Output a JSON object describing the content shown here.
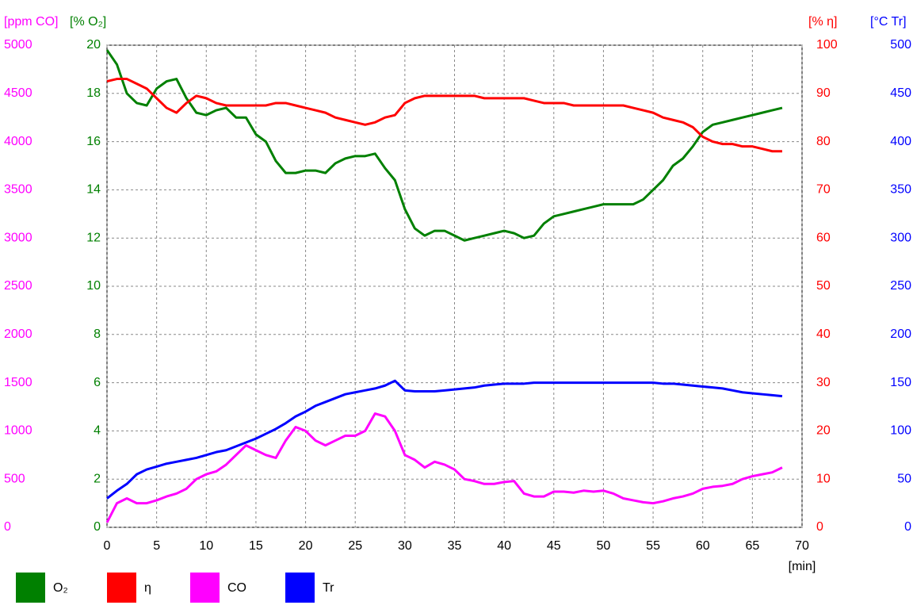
{
  "chart_data": {
    "type": "line",
    "x_label": "[min]",
    "xlim": [
      0,
      70
    ],
    "xticks": [
      0,
      5,
      10,
      15,
      20,
      25,
      30,
      35,
      40,
      45,
      50,
      55,
      60,
      65,
      70
    ],
    "grid": true,
    "axes": [
      {
        "title": "[ppm CO]",
        "color": "#ff00ff",
        "side": "left-outer",
        "lim": [
          0,
          5000
        ],
        "ticks": [
          0,
          500,
          1000,
          1500,
          2000,
          2500,
          3000,
          3500,
          4000,
          4500,
          5000
        ]
      },
      {
        "title": "[% O₂]",
        "color": "#008000",
        "side": "left-inner",
        "lim": [
          0,
          20
        ],
        "ticks": [
          0,
          2,
          4,
          6,
          8,
          10,
          12,
          14,
          16,
          18,
          20
        ]
      },
      {
        "title": "[% η]",
        "color": "#ff0000",
        "side": "right-inner",
        "lim": [
          0,
          100
        ],
        "ticks": [
          0,
          10,
          20,
          30,
          40,
          50,
          60,
          70,
          80,
          90,
          100
        ]
      },
      {
        "title": "[°C Tr]",
        "color": "#0000ff",
        "side": "right-outer",
        "lim": [
          0,
          500
        ],
        "ticks": [
          0,
          50,
          100,
          150,
          200,
          250,
          300,
          350,
          400,
          450,
          500
        ]
      }
    ],
    "x": [
      0,
      1,
      2,
      3,
      4,
      5,
      6,
      7,
      8,
      9,
      10,
      11,
      12,
      13,
      14,
      15,
      16,
      17,
      18,
      19,
      20,
      21,
      22,
      23,
      24,
      25,
      26,
      27,
      28,
      29,
      30,
      31,
      32,
      33,
      34,
      35,
      36,
      37,
      38,
      39,
      40,
      41,
      42,
      43,
      44,
      45,
      46,
      47,
      48,
      49,
      50,
      51,
      52,
      53,
      54,
      55,
      56,
      57,
      58,
      59,
      60,
      61,
      62,
      63,
      64,
      65,
      66,
      67,
      68
    ],
    "series": [
      {
        "name": "O₂",
        "color": "#008000",
        "axis": 1,
        "values": [
          19.8,
          19.2,
          18.0,
          17.6,
          17.5,
          18.2,
          18.5,
          18.6,
          17.8,
          17.2,
          17.1,
          17.3,
          17.4,
          17.0,
          17.0,
          16.3,
          16.0,
          15.2,
          14.7,
          14.7,
          14.8,
          14.8,
          14.7,
          15.1,
          15.3,
          15.4,
          15.4,
          15.5,
          14.9,
          14.4,
          13.2,
          12.4,
          12.1,
          12.3,
          12.3,
          12.1,
          11.9,
          12.0,
          12.1,
          12.2,
          12.3,
          12.2,
          12.0,
          12.1,
          12.6,
          12.9,
          13.0,
          13.1,
          13.2,
          13.3,
          13.4,
          13.4,
          13.4,
          13.4,
          13.6,
          14.0,
          14.4,
          15.0,
          15.3,
          15.8,
          16.4,
          16.7,
          16.8,
          16.9,
          17.0,
          17.1,
          17.2,
          17.3,
          17.4
        ]
      },
      {
        "name": "η",
        "color": "#ff0000",
        "axis": 2,
        "values": [
          92.5,
          93,
          93,
          92,
          91,
          89,
          87,
          86,
          88,
          89.5,
          89,
          88,
          87.5,
          87.5,
          87.5,
          87.5,
          87.5,
          88,
          88,
          87.5,
          87,
          86.5,
          86,
          85,
          84.5,
          84,
          83.5,
          84,
          85,
          85.5,
          88,
          89,
          89.5,
          89.5,
          89.5,
          89.5,
          89.5,
          89.5,
          89,
          89,
          89,
          89,
          89,
          88.5,
          88,
          88,
          88,
          87.5,
          87.5,
          87.5,
          87.5,
          87.5,
          87.5,
          87,
          86.5,
          86,
          85,
          84.5,
          84,
          83,
          81,
          80,
          79.5,
          79.5,
          79,
          79,
          78.5,
          78,
          78
        ]
      },
      {
        "name": "CO",
        "color": "#ff00ff",
        "axis": 0,
        "values": [
          50,
          250,
          300,
          250,
          250,
          280,
          320,
          350,
          400,
          500,
          550,
          580,
          650,
          750,
          850,
          800,
          750,
          720,
          900,
          1040,
          1000,
          900,
          850,
          900,
          950,
          950,
          1000,
          1180,
          1150,
          1000,
          750,
          700,
          620,
          680,
          650,
          600,
          500,
          480,
          450,
          450,
          470,
          480,
          350,
          320,
          320,
          370,
          370,
          360,
          380,
          370,
          380,
          350,
          300,
          280,
          260,
          250,
          270,
          300,
          320,
          350,
          400,
          420,
          430,
          450,
          500,
          530,
          550,
          570,
          620
        ]
      },
      {
        "name": "Tr",
        "color": "#0000ff",
        "axis": 3,
        "values": [
          30,
          38,
          45,
          55,
          60,
          63,
          66,
          68,
          70,
          72,
          75,
          78,
          80,
          84,
          88,
          92,
          97,
          102,
          108,
          115,
          120,
          126,
          130,
          134,
          138,
          140,
          142,
          144,
          147,
          152,
          142,
          141,
          141,
          141,
          142,
          143,
          144,
          145,
          147,
          148,
          149,
          149,
          149,
          150,
          150,
          150,
          150,
          150,
          150,
          150,
          150,
          150,
          150,
          150,
          150,
          150,
          149,
          149,
          148,
          147,
          146,
          145,
          144,
          142,
          140,
          139,
          138,
          137,
          136
        ]
      }
    ]
  }
}
